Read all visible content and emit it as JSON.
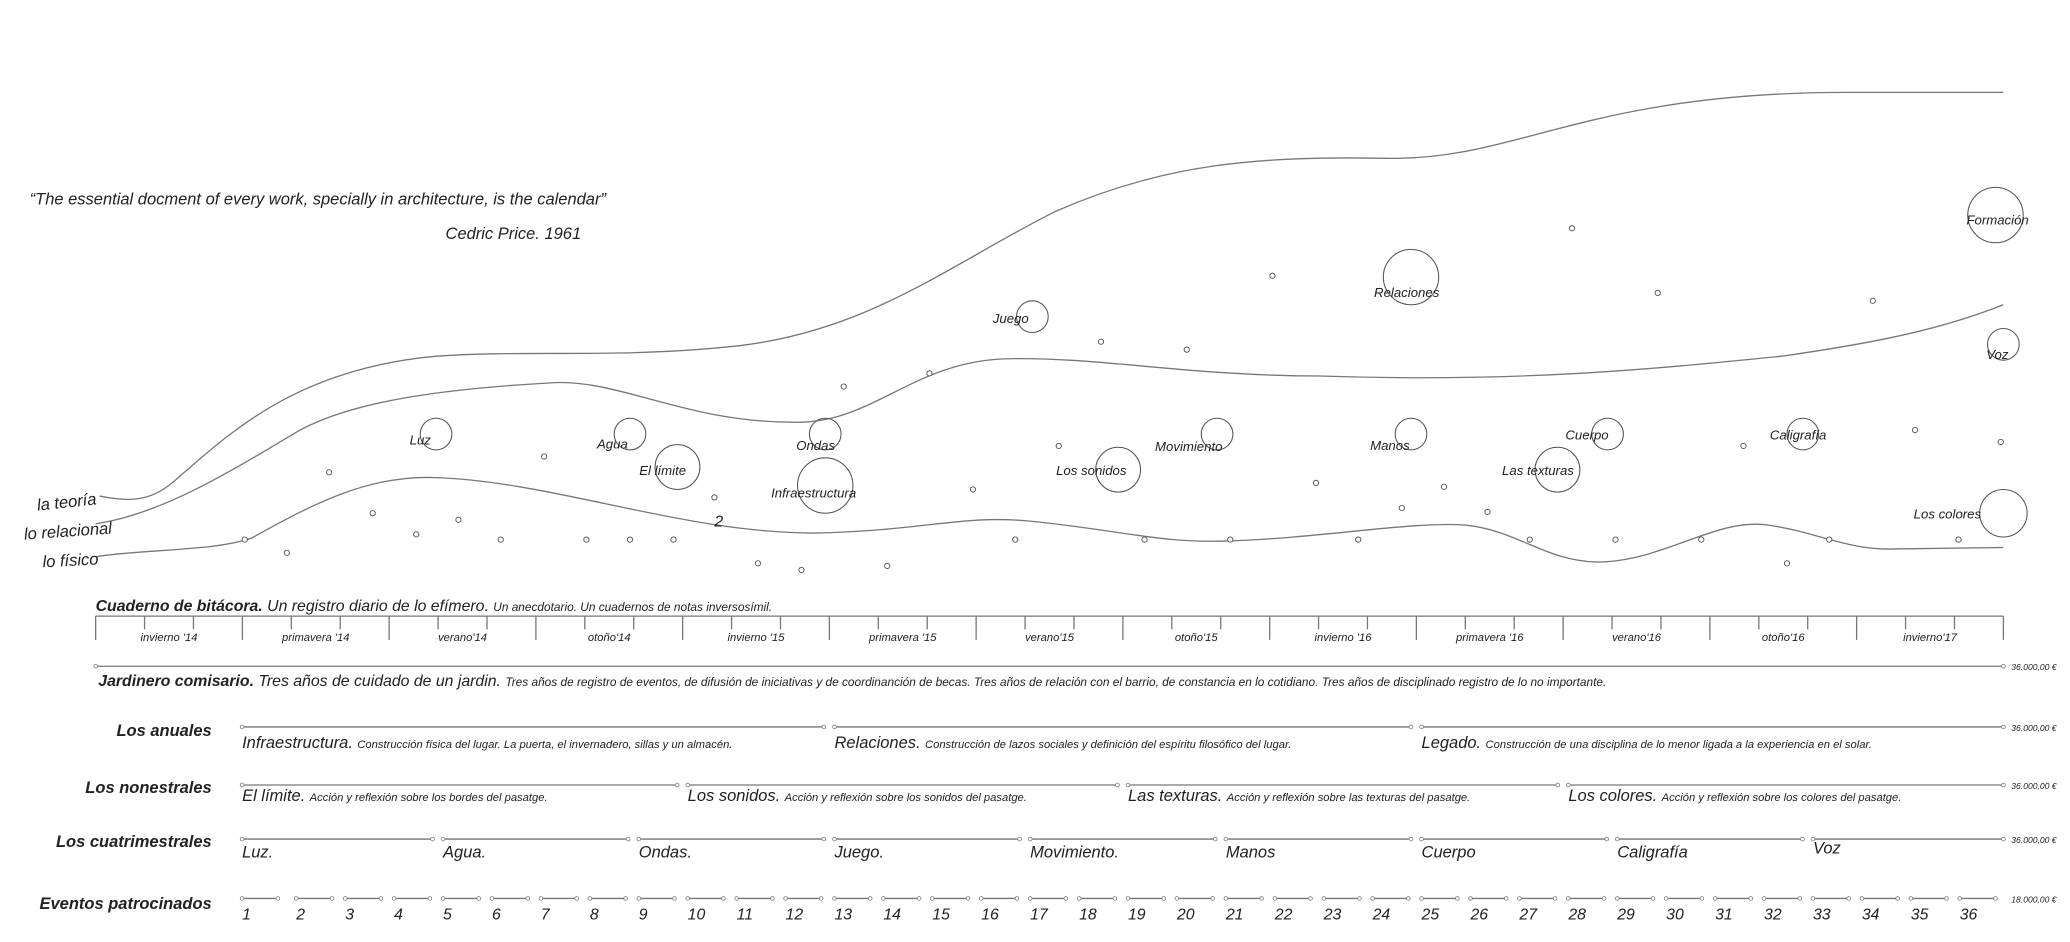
{
  "quote": {
    "text": "“The essential docment of every work, specially in architecture, is the calendar”",
    "author": "Cedric Price. 1961"
  },
  "layers": [
    "la teoría",
    "lo relacional",
    "lo físico"
  ],
  "bubbles": [
    "Luz",
    "Agua",
    "El límite",
    "Ondas",
    "Infraestructura",
    "Juego",
    "Relaciones",
    "Formación",
    "Voz",
    "Los sonidos",
    "Movimiento",
    "Manos",
    "Cuerpo",
    "Las texturas",
    "Caligrafía",
    "Los colores"
  ],
  "marker_number": "2",
  "cuaderno": {
    "title": "Cuaderno de bitácora.",
    "subtitle": "Un registro diario de lo efímero.",
    "note": "Un anecdotario. Un cuadernos de notas inversosímil."
  },
  "seasons": [
    "invierno '14",
    "primavera '14",
    "verano'14",
    "otoño'14",
    "invierno '15",
    "primavera '15",
    "verano'15",
    "otoño'15",
    "invierno '16",
    "primavera '16",
    "verano'16",
    "otoño'16",
    "invierno'17"
  ],
  "jardinero": {
    "title": "Jardinero comisario.",
    "subtitle": "Tres años de cuidado de un jardin.",
    "note": "Tres años de registro de eventos, de difusión de iniciativas y de coordinanción de becas. Tres años de relación con el barrio, de constancia en lo cotidiano. Tres años de disciplinado registro de lo no importante.",
    "amount": "36.000,00 €"
  },
  "rows": [
    {
      "label": "Los anuales",
      "amount": "36.000,00 €",
      "items": [
        {
          "title": "Infraestructura.",
          "desc": "Construcción física del lugar. La puerta, el invernadero, sillas y un almacén."
        },
        {
          "title": "Relaciones.",
          "desc": "Construcción de lazos sociales y definición del espíritu filosófico del lugar."
        },
        {
          "title": "Legado.",
          "desc": "Construcción de una disciplina de lo menor ligada a la experiencia en el solar."
        }
      ]
    },
    {
      "label": "Los nonestrales",
      "amount": "36.000,00 €",
      "items": [
        {
          "title": "El límite.",
          "desc": "Acción y reflexión sobre los bordes del pasatge."
        },
        {
          "title": "Los sonidos.",
          "desc": "Acción y reflexión sobre los sonidos del pasatge."
        },
        {
          "title": "Las texturas.",
          "desc": "Acción y reflexión sobre las texturas del pasatge."
        },
        {
          "title": "Los colores.",
          "desc": "Acción y reflexión sobre los colores del pasatge."
        }
      ]
    },
    {
      "label": "Los cuatrimestrales",
      "amount": "36.000,00 €",
      "items": [
        {
          "title": "Luz.",
          "desc": ""
        },
        {
          "title": "Agua.",
          "desc": ""
        },
        {
          "title": "Ondas.",
          "desc": ""
        },
        {
          "title": "Juego.",
          "desc": ""
        },
        {
          "title": "Movimiento.",
          "desc": ""
        },
        {
          "title": "Manos",
          "desc": ""
        },
        {
          "title": "Cuerpo",
          "desc": ""
        },
        {
          "title": "Caligrafía",
          "desc": ""
        },
        {
          "title": "Voz",
          "desc": ""
        }
      ]
    },
    {
      "label": "Eventos patrocinados",
      "amount": "18.000,00 €",
      "items": [
        {
          "title": "1",
          "desc": ""
        },
        {
          "title": "2",
          "desc": ""
        },
        {
          "title": "3",
          "desc": ""
        },
        {
          "title": "4",
          "desc": ""
        },
        {
          "title": "5",
          "desc": ""
        },
        {
          "title": "6",
          "desc": ""
        },
        {
          "title": "7",
          "desc": ""
        },
        {
          "title": "8",
          "desc": ""
        },
        {
          "title": "9",
          "desc": ""
        },
        {
          "title": "10",
          "desc": ""
        },
        {
          "title": "11",
          "desc": ""
        },
        {
          "title": "12",
          "desc": ""
        },
        {
          "title": "13",
          "desc": ""
        },
        {
          "title": "14",
          "desc": ""
        },
        {
          "title": "15",
          "desc": ""
        },
        {
          "title": "16",
          "desc": ""
        },
        {
          "title": "17",
          "desc": ""
        },
        {
          "title": "18",
          "desc": ""
        },
        {
          "title": "19",
          "desc": ""
        },
        {
          "title": "20",
          "desc": ""
        },
        {
          "title": "21",
          "desc": ""
        },
        {
          "title": "22",
          "desc": ""
        },
        {
          "title": "23",
          "desc": ""
        },
        {
          "title": "24",
          "desc": ""
        },
        {
          "title": "25",
          "desc": ""
        },
        {
          "title": "26",
          "desc": ""
        },
        {
          "title": "27",
          "desc": ""
        },
        {
          "title": "28",
          "desc": ""
        },
        {
          "title": "29",
          "desc": ""
        },
        {
          "title": "30",
          "desc": ""
        },
        {
          "title": "31",
          "desc": ""
        },
        {
          "title": "32",
          "desc": ""
        },
        {
          "title": "33",
          "desc": ""
        },
        {
          "title": "34",
          "desc": ""
        },
        {
          "title": "35",
          "desc": ""
        },
        {
          "title": "36",
          "desc": ""
        }
      ]
    }
  ]
}
